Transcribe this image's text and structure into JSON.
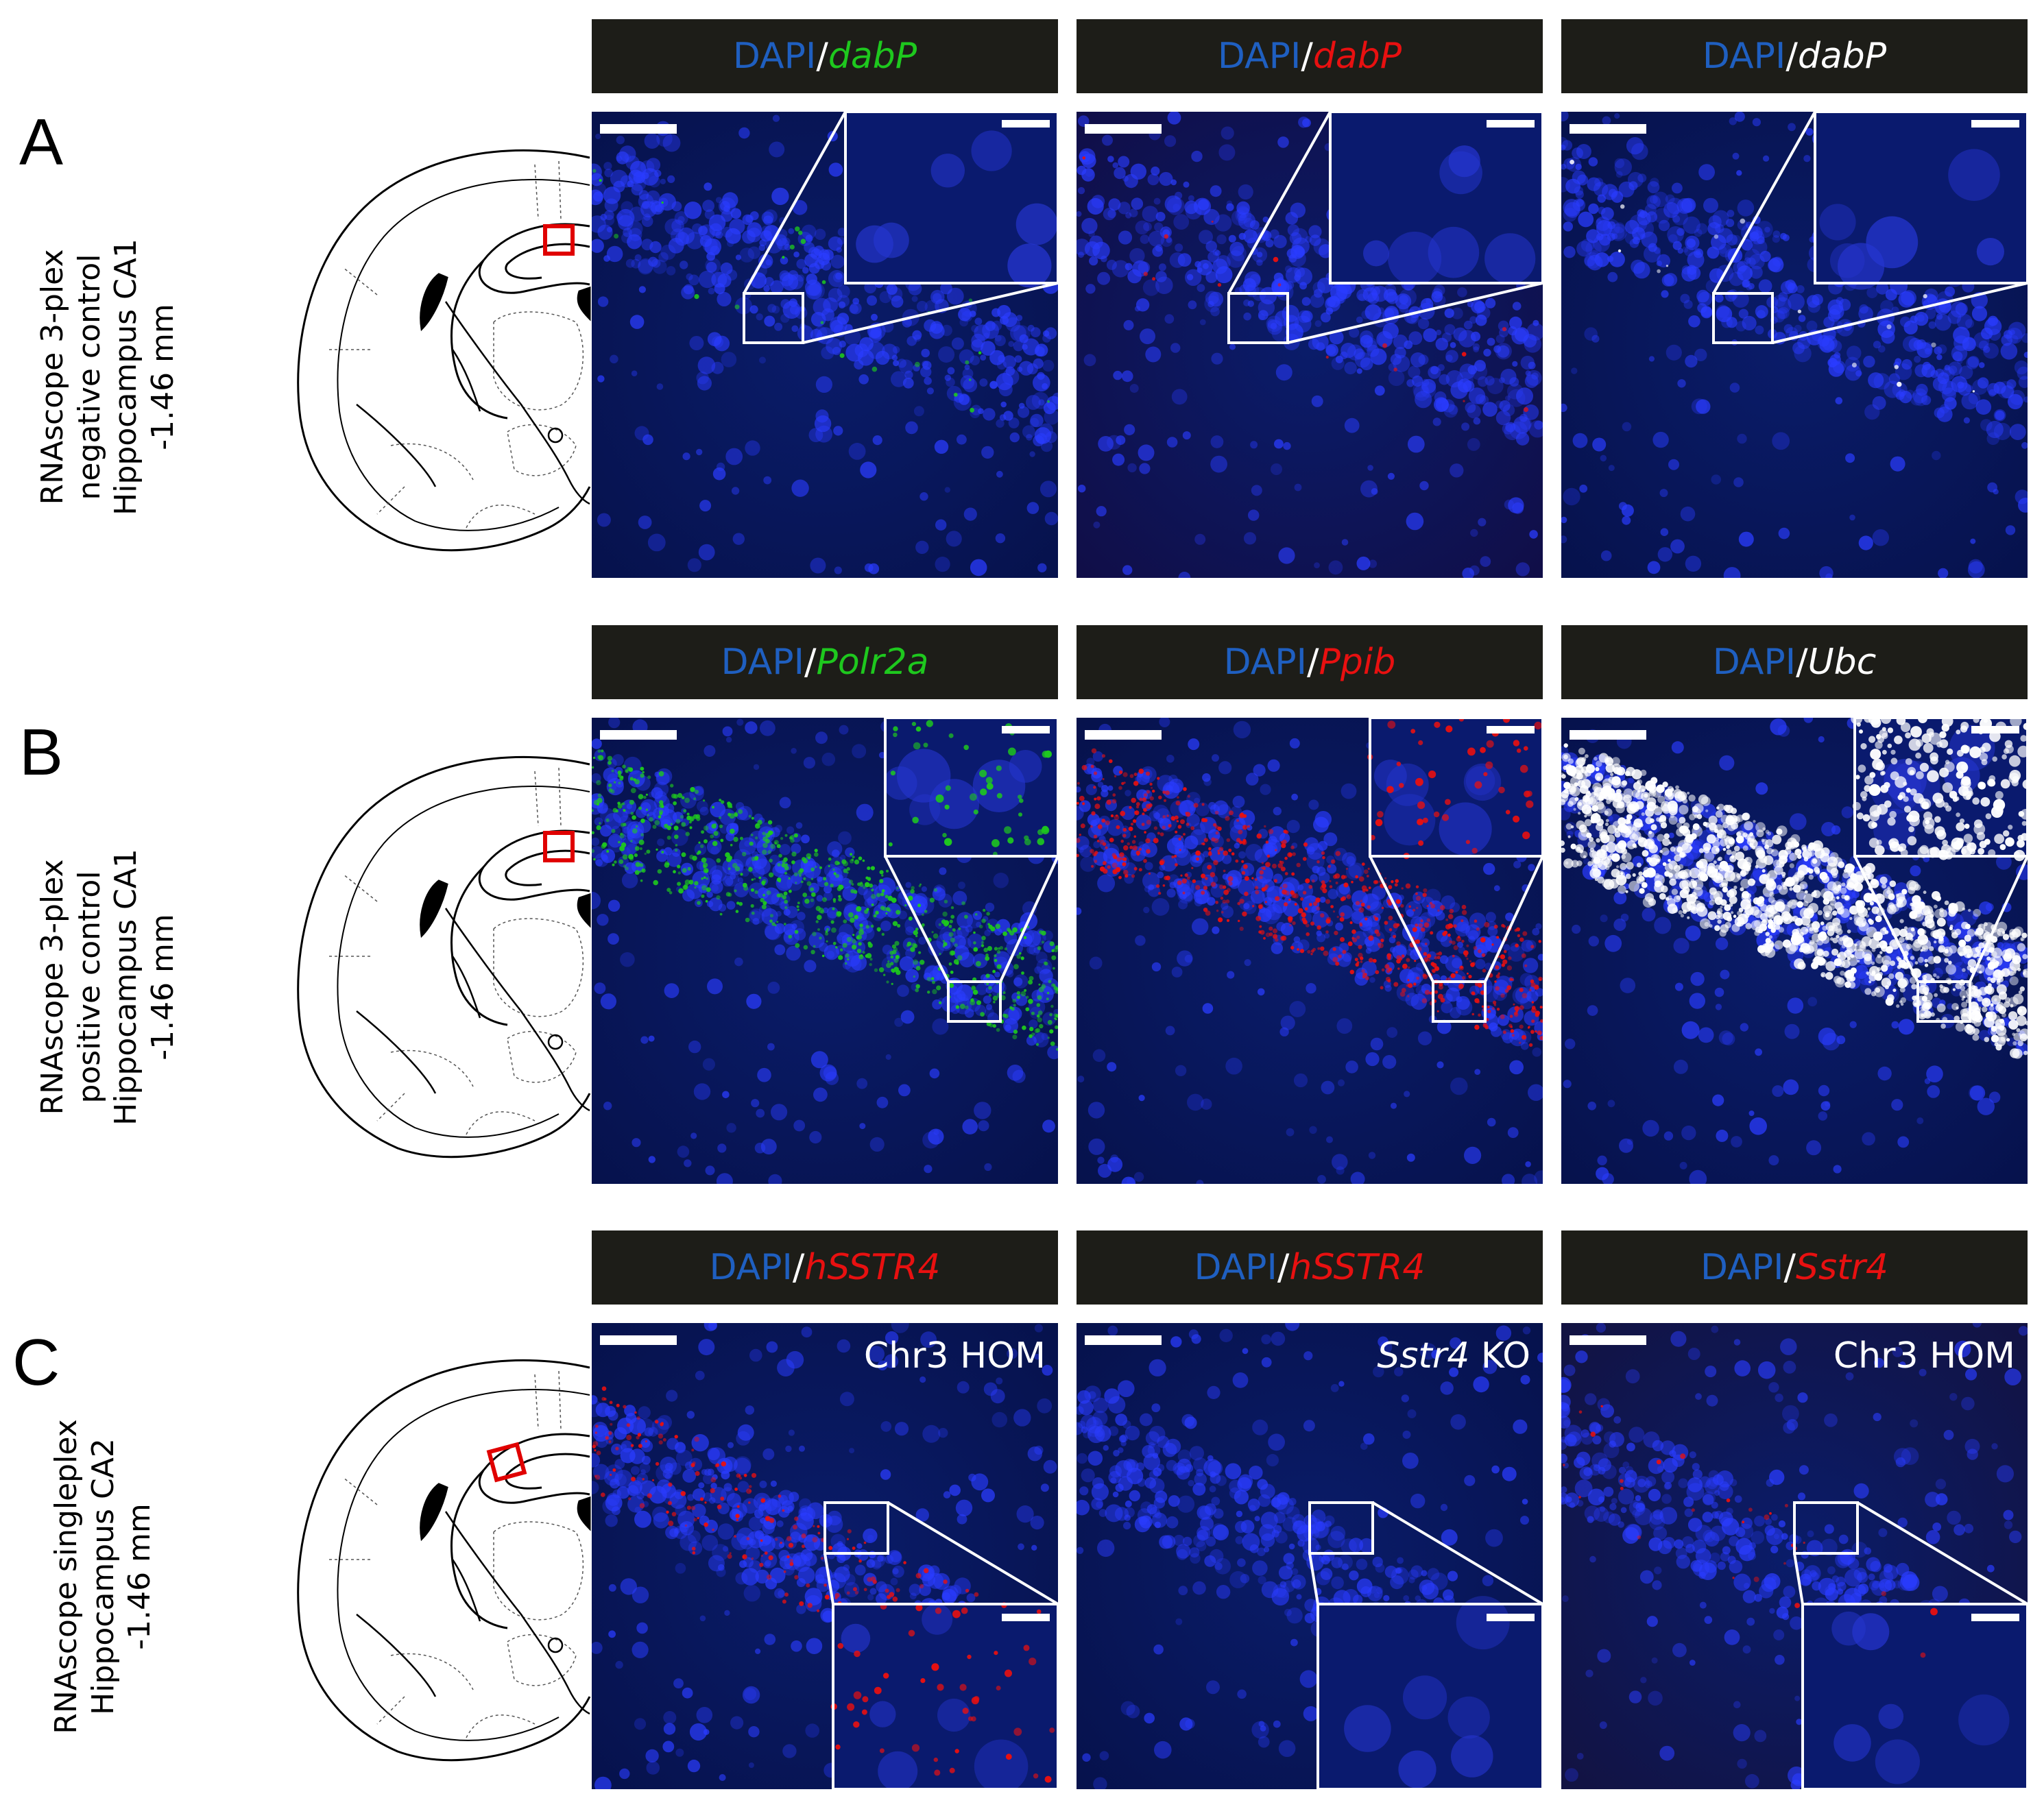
{
  "rows": [
    {
      "letter": "A",
      "side_label": [
        "RNAscope 3-plex",
        "negative control",
        "Hippocampus CA1",
        "-1.46 mm"
      ],
      "panels": [
        {
          "dapi": "DAPI",
          "slash": "/",
          "gene": "dabP",
          "gene_color": "#1ec81e",
          "overlay": ""
        },
        {
          "dapi": "DAPI",
          "slash": "/",
          "gene": "dabP",
          "gene_color": "#e81010",
          "overlay": ""
        },
        {
          "dapi": "DAPI",
          "slash": "/",
          "gene": "dabP",
          "gene_color": "#ffffff",
          "overlay": ""
        }
      ]
    },
    {
      "letter": "B",
      "side_label": [
        "RNAscope 3-plex",
        "positive control",
        "Hippocampus CA1",
        "-1.46 mm"
      ],
      "panels": [
        {
          "dapi": "DAPI",
          "slash": "/",
          "gene": "Polr2a",
          "gene_color": "#1ec81e",
          "overlay": ""
        },
        {
          "dapi": "DAPI",
          "slash": "/",
          "gene": "Ppib",
          "gene_color": "#e81010",
          "overlay": ""
        },
        {
          "dapi": "DAPI",
          "slash": "/",
          "gene": "Ubc",
          "gene_color": "#ffffff",
          "overlay": ""
        }
      ]
    },
    {
      "letter": "C",
      "side_label": [
        "RNAscope singleplex",
        "Hippocampus CA2",
        "-1.46 mm"
      ],
      "panels": [
        {
          "dapi": "DAPI",
          "slash": "/",
          "gene": "hSSTR4",
          "gene_color": "#e81010",
          "overlay": "Chr3 HOM"
        },
        {
          "dapi": "DAPI",
          "slash": "/",
          "gene": "hSSTR4",
          "gene_color": "#e81010",
          "overlay_italic": "Sstr4",
          "overlay": " KO"
        },
        {
          "dapi": "DAPI",
          "slash": "/",
          "gene": "Sstr4",
          "gene_color": "#e81010",
          "overlay": "Chr3 HOM"
        }
      ]
    }
  ],
  "colors": {
    "header_bg": "#1d1d18",
    "dapi_blue": "#1f5fc0",
    "micro_bg": "#06114a",
    "roi_red": "#e00000"
  }
}
